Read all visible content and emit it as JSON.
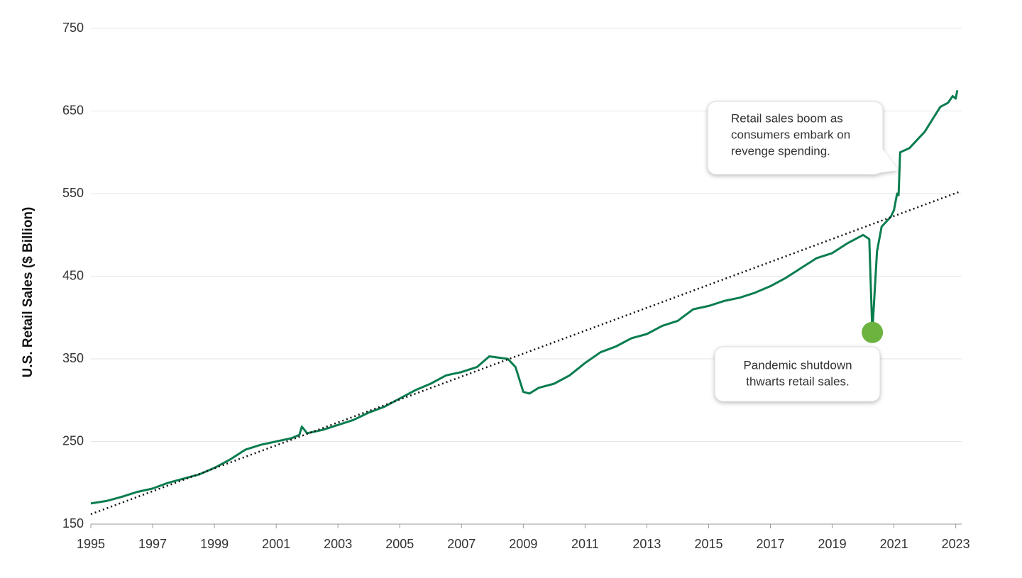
{
  "chart_data": {
    "type": "line",
    "ylabel": "U.S. Retail Sales ($ Billion)",
    "xlim": [
      1995,
      2023.1
    ],
    "xticks": [
      1995,
      1997,
      1999,
      2001,
      2003,
      2005,
      2007,
      2009,
      2011,
      2013,
      2015,
      2017,
      2019,
      2021,
      2023
    ],
    "ylim": [
      150,
      750
    ],
    "yticks": [
      150,
      250,
      350,
      450,
      550,
      650,
      750
    ],
    "grid": true,
    "series": [
      {
        "color": "#0a7d4f",
        "style": "solid",
        "x": [
          1995.0,
          1995.5,
          1996.0,
          1996.5,
          1997.0,
          1997.5,
          1998.0,
          1998.5,
          1999.0,
          1999.5,
          2000.0,
          2000.5,
          2001.0,
          2001.5,
          2001.75,
          2001.83,
          2002.0,
          2002.5,
          2003.0,
          2003.5,
          2004.0,
          2004.5,
          2005.0,
          2005.5,
          2006.0,
          2006.5,
          2007.0,
          2007.5,
          2007.9,
          2008.5,
          2008.75,
          2009.0,
          2009.2,
          2009.5,
          2010.0,
          2010.5,
          2011.0,
          2011.5,
          2012.0,
          2012.5,
          2013.0,
          2013.5,
          2014.0,
          2014.5,
          2015.0,
          2015.5,
          2016.0,
          2016.5,
          2017.0,
          2017.5,
          2018.0,
          2018.5,
          2019.0,
          2019.5,
          2020.0,
          2020.2,
          2020.3,
          2020.45,
          2020.6,
          2020.9,
          2021.0,
          2021.1,
          2021.15,
          2021.2,
          2021.5,
          2021.75,
          2022.0,
          2022.25,
          2022.5,
          2022.75,
          2022.9,
          2023.0,
          2023.05
        ],
        "values": [
          175,
          178,
          183,
          189,
          193,
          200,
          205,
          210,
          218,
          228,
          240,
          246,
          250,
          254,
          258,
          268,
          260,
          264,
          270,
          276,
          285,
          292,
          302,
          312,
          320,
          330,
          334,
          340,
          353,
          350,
          340,
          310,
          308,
          315,
          320,
          330,
          345,
          358,
          365,
          375,
          380,
          390,
          396,
          410,
          414,
          420,
          424,
          430,
          438,
          448,
          460,
          472,
          478,
          490,
          500,
          495,
          382,
          480,
          510,
          522,
          530,
          550,
          548,
          600,
          605,
          615,
          625,
          640,
          655,
          660,
          668,
          665,
          675
        ]
      },
      {
        "color": "#111111",
        "style": "dotted",
        "x": [
          1995,
          2023.1
        ],
        "values": [
          162,
          552
        ]
      }
    ],
    "annotations": [
      {
        "lines": [
          "Retail sales boom as",
          "consumers embark on",
          "revenge spending."
        ],
        "x": 2021.1,
        "y": 560
      },
      {
        "lines": [
          "Pandemic shutdown",
          "thwarts retail sales."
        ],
        "x": 2020.3,
        "y": 382
      }
    ]
  }
}
